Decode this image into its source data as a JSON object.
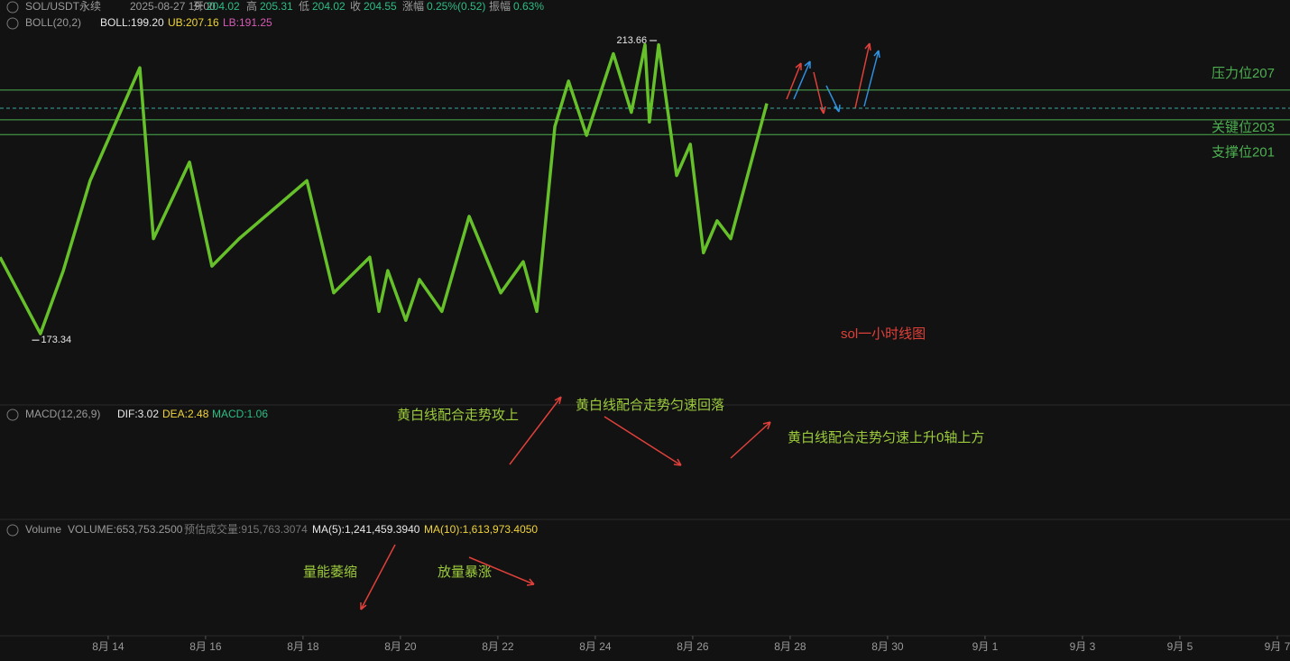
{
  "chart_data": {
    "type": "line",
    "title": "sol一小时线图",
    "header": {
      "symbol": "SOL/USDT永续",
      "time": "2025-08-27 19:00",
      "open_label": "开",
      "open": 204.02,
      "high_label": "高",
      "high": 205.31,
      "low_label": "低",
      "low": 204.02,
      "close_label": "收",
      "close": 204.55,
      "change_label": "涨幅",
      "change": "0.25%(0.52)",
      "amp_label": "振幅",
      "amp": "0.63%"
    },
    "boll": {
      "name": "BOLL(20,2)",
      "mid": "BOLL:199.20",
      "ub": "UB:207.16",
      "lb": "LB:191.25"
    },
    "macd": {
      "name": "MACD(12,26,9)",
      "dif": "DIF:3.02",
      "dea": "DEA:2.48",
      "macd": "MACD:1.06",
      "annotations": [
        "黄白线配合走势攻上",
        "黄白线配合走势匀速回落",
        "黄白线配合走势匀速上升0轴上方"
      ]
    },
    "volume": {
      "name": "Volume",
      "volume": "VOLUME:653,753.2500",
      "estimate": "预估成交量:915,763.3074",
      "ma5": "MA(5):1,241,459.3940",
      "ma10": "MA(10):1,613,973.4050",
      "annotations": [
        "量能萎缩",
        "放量暴涨"
      ]
    },
    "xlim": [
      11.78,
      38.26
    ],
    "ylim": [
      164.5,
      217.3
    ],
    "xticks": [
      {
        "value": 14,
        "label": "8月 14"
      },
      {
        "value": 16,
        "label": "8月 16"
      },
      {
        "value": 18,
        "label": "8月 18"
      },
      {
        "value": 20,
        "label": "8月 20"
      },
      {
        "value": 22,
        "label": "8月 22"
      },
      {
        "value": 24,
        "label": "8月 24"
      },
      {
        "value": 26,
        "label": "8月 26"
      },
      {
        "value": 28,
        "label": "8月 28"
      },
      {
        "value": 30,
        "label": "8月 30"
      },
      {
        "value": 32,
        "label": "9月 1"
      },
      {
        "value": 34,
        "label": "9月 3"
      },
      {
        "value": 36,
        "label": "9月 5"
      },
      {
        "value": 38,
        "label": "9月 7"
      }
    ],
    "levels": [
      {
        "value": 207,
        "label": "压力位207"
      },
      {
        "value": 203,
        "label": "关键位203"
      },
      {
        "value": 201,
        "label": "支撑位201"
      }
    ],
    "extremes": [
      {
        "x": 25.3,
        "value": 213.66
      },
      {
        "x": 12.4,
        "value": 173.34
      }
    ],
    "series": [
      {
        "color": "#66c02a",
        "x": [
          11.78,
          12.61,
          13.08,
          13.63,
          14.65,
          14.93,
          15.67,
          16.13,
          16.69,
          18.08,
          18.63,
          19.37,
          19.56,
          19.74,
          20.11,
          20.39,
          20.85,
          21.41,
          22.06,
          22.52,
          22.8,
          23.17,
          23.45,
          23.82,
          24.37,
          24.74,
          25.02,
          25.11,
          25.3,
          25.67,
          25.95,
          26.22,
          26.5,
          26.78,
          27.52
        ],
        "values": [
          184.5,
          174.2,
          182.7,
          194.8,
          210.0,
          187.0,
          197.3,
          183.3,
          187.0,
          194.8,
          179.7,
          184.5,
          177.2,
          182.7,
          176.0,
          181.5,
          177.2,
          190.0,
          179.7,
          183.9,
          177.2,
          202.1,
          208.2,
          200.9,
          211.9,
          204.0,
          213.1,
          202.7,
          213.1,
          195.5,
          199.7,
          185.1,
          189.4,
          187.0,
          205.2
        ]
      }
    ]
  }
}
